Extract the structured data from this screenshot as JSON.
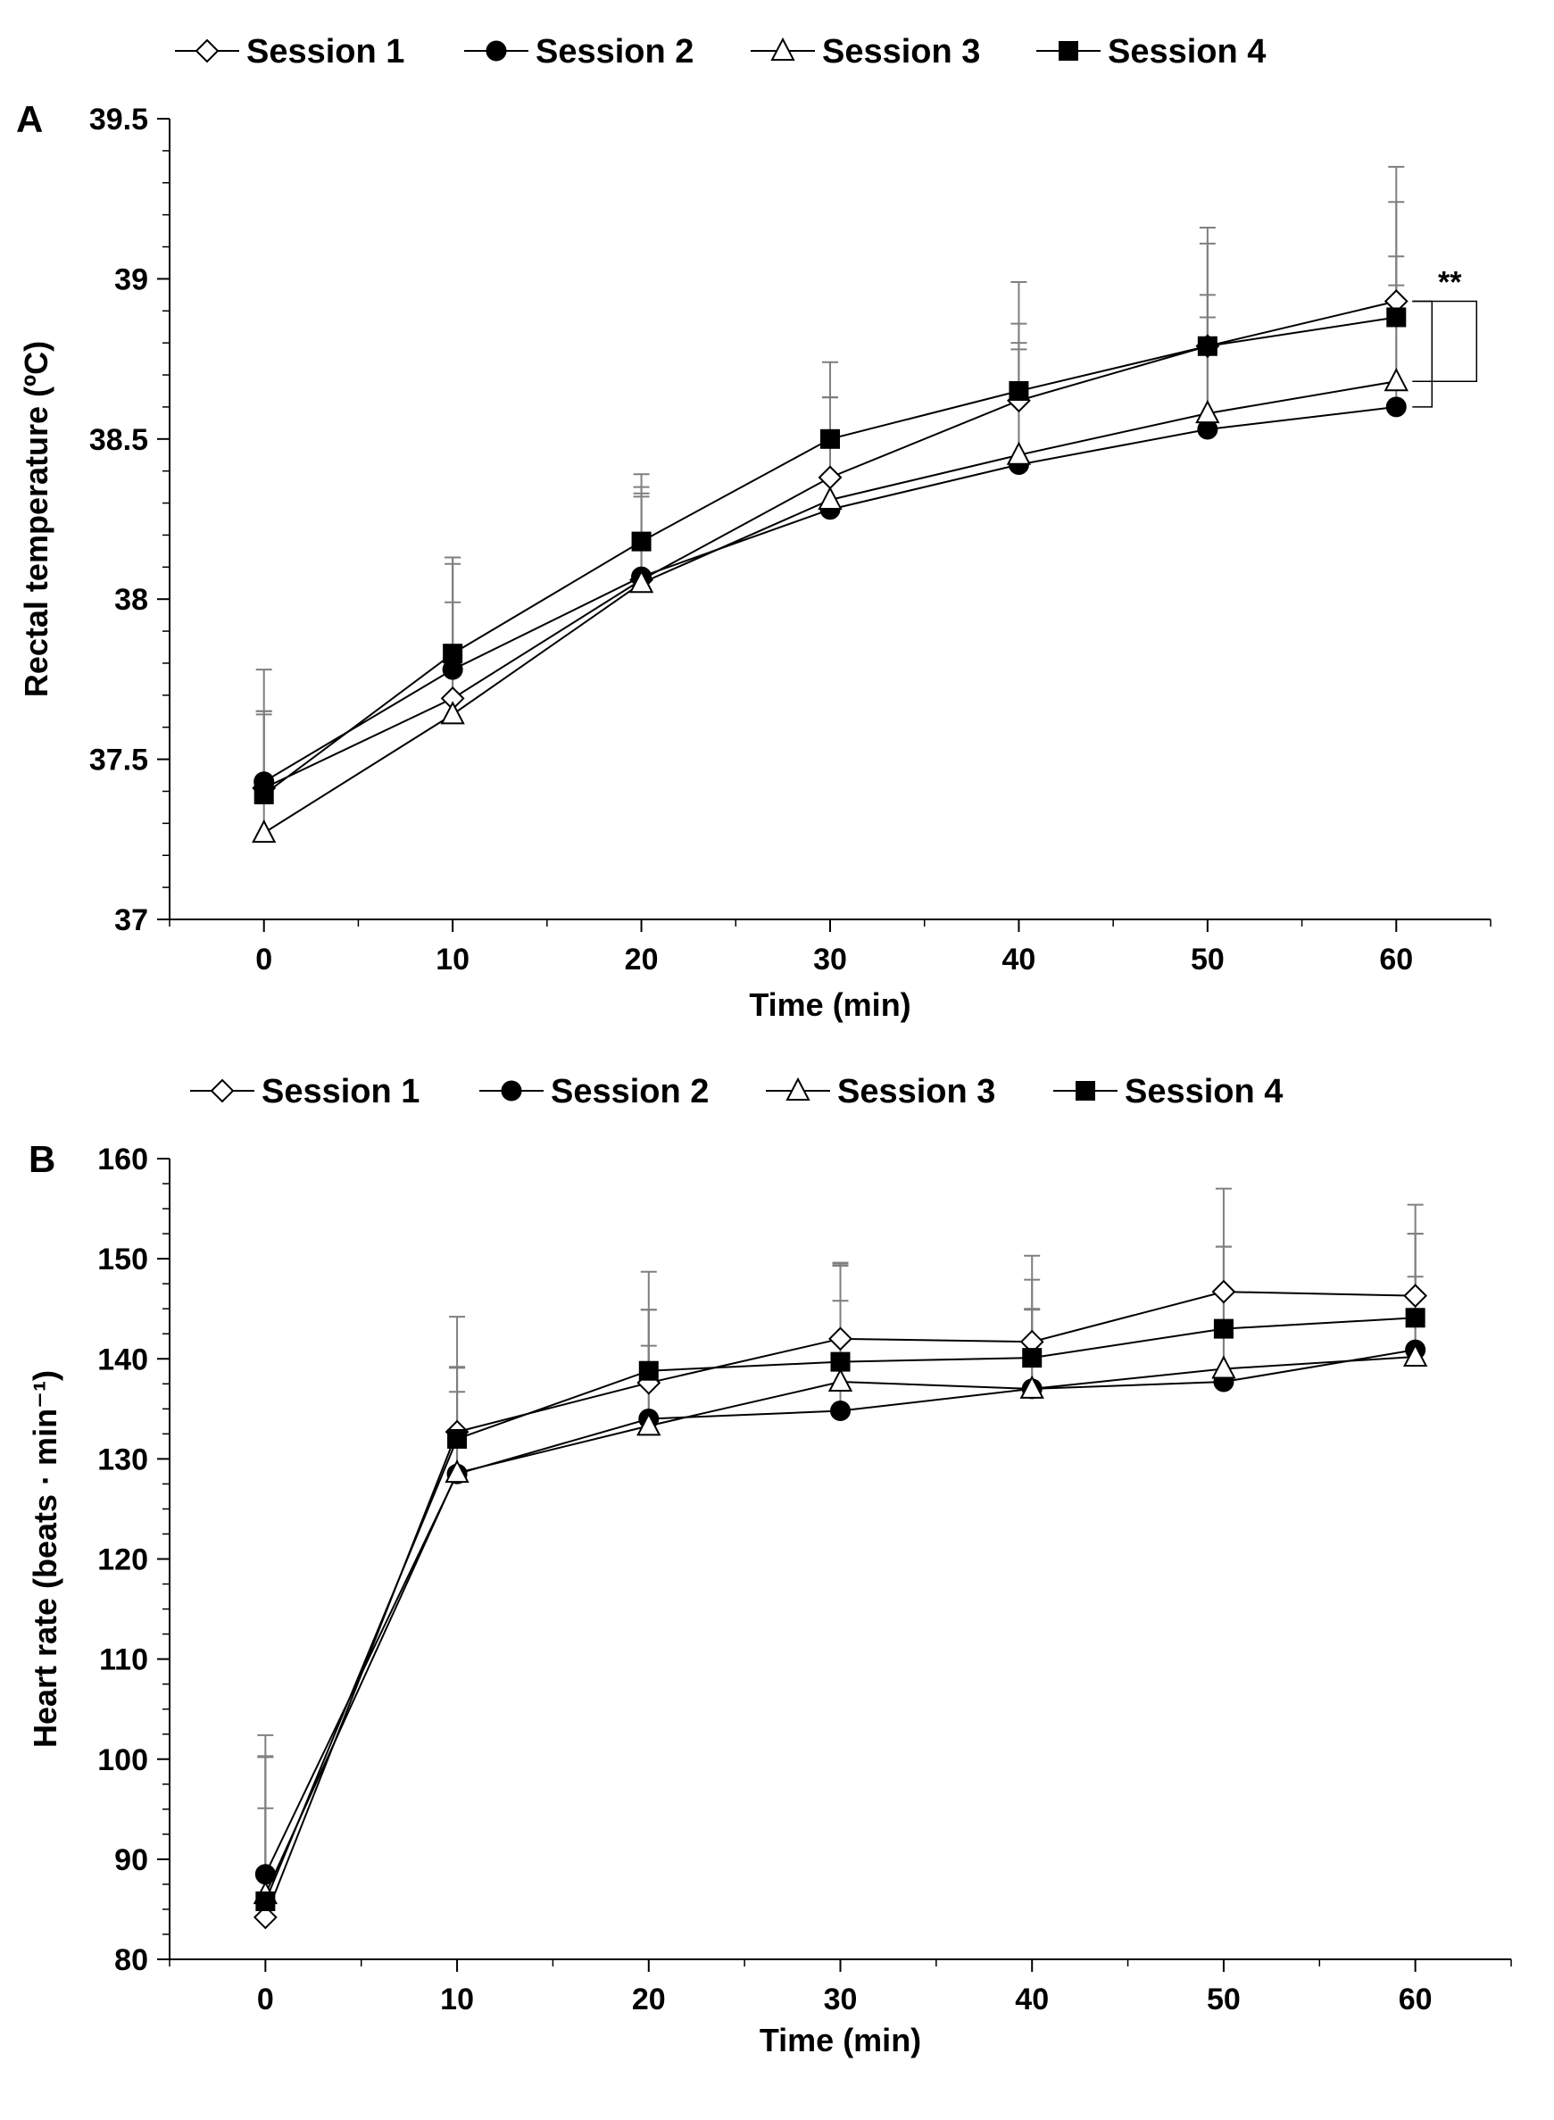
{
  "chart_data": [
    {
      "type": "line",
      "panel_label": "A",
      "title": "",
      "xlabel": "Time (min)",
      "ylabel": "Rectal temperature (ºC)",
      "x": [
        0,
        10,
        20,
        30,
        40,
        50,
        60
      ],
      "xlim": [
        -5,
        65
      ],
      "ylim": [
        37,
        39.5
      ],
      "xticks": [
        0,
        10,
        20,
        30,
        40,
        50,
        60
      ],
      "yticks": [
        37,
        37.5,
        38,
        38.5,
        39,
        39.5
      ],
      "ytick_labels": [
        "37",
        "37.5",
        "38",
        "38.5",
        "39",
        "39.5"
      ],
      "grid": false,
      "legend_position": "top",
      "error_bars": "upper SD",
      "significance": {
        "label": "**",
        "x": 60,
        "brackets": [
          [
            38.93,
            38.6
          ],
          [
            38.93,
            38.68
          ]
        ]
      },
      "series": [
        {
          "name": "Session 1",
          "marker": "diamond-open",
          "values": [
            37.41,
            37.69,
            38.06,
            38.38,
            38.62,
            38.79,
            38.93
          ],
          "errors": [
            0.24,
            0.3,
            0.27,
            0.25,
            0.24,
            0.37,
            0.42
          ]
        },
        {
          "name": "Session 2",
          "marker": "circle-filled",
          "values": [
            37.43,
            37.78,
            38.07,
            38.28,
            38.42,
            38.53,
            38.6
          ],
          "errors": [
            0.21,
            0.35,
            0.25,
            0.35,
            0.36,
            0.35,
            0.38
          ]
        },
        {
          "name": "Session 3",
          "marker": "triangle-open",
          "values": [
            37.27,
            37.64,
            38.05,
            38.31,
            38.45,
            38.58,
            38.68
          ],
          "errors": [
            0.38,
            0.47,
            0.3,
            0.32,
            0.35,
            0.37,
            0.39
          ]
        },
        {
          "name": "Session 4",
          "marker": "square-filled",
          "values": [
            37.39,
            37.83,
            38.18,
            38.5,
            38.65,
            38.79,
            38.88
          ],
          "errors": [
            0.39,
            0.3,
            0.21,
            0.24,
            0.34,
            0.32,
            0.36
          ]
        }
      ]
    },
    {
      "type": "line",
      "panel_label": "B",
      "title": "",
      "xlabel": "Time (min)",
      "ylabel": "Heart rate (beats · min⁻¹)",
      "x": [
        0,
        10,
        20,
        30,
        40,
        50,
        60
      ],
      "xlim": [
        -5,
        65
      ],
      "ylim": [
        80,
        160
      ],
      "xticks": [
        0,
        10,
        20,
        30,
        40,
        50,
        60
      ],
      "yticks": [
        80,
        90,
        100,
        110,
        120,
        130,
        140,
        150,
        160
      ],
      "ytick_labels": [
        "80",
        "90",
        "100",
        "110",
        "120",
        "130",
        "140",
        "150",
        "160"
      ],
      "grid": false,
      "legend_position": "top",
      "error_bars": "upper SD",
      "series": [
        {
          "name": "Session 1",
          "marker": "diamond-open",
          "values": [
            84.2,
            132.7,
            137.6,
            142.0,
            141.7,
            146.7,
            146.3
          ],
          "errors": [
            18.2,
            11.5,
            11.1,
            7.6,
            8.6,
            10.3,
            9.1
          ]
        },
        {
          "name": "Session 2",
          "marker": "circle-filled",
          "values": [
            88.5,
            128.5,
            134.0,
            134.8,
            137.0,
            137.7,
            140.9
          ],
          "errors": [
            11.7,
            10.7,
            10.9,
            14.5,
            10.9,
            13.5,
            11.6
          ]
        },
        {
          "name": "Session 3",
          "marker": "triangle-open",
          "values": [
            86.5,
            128.6,
            133.3,
            137.7,
            137.0,
            139.0,
            140.2
          ],
          "errors": [
            8.6,
            8.1,
            8.0,
            8.1,
            8.0,
            8.0,
            8.0
          ]
        },
        {
          "name": "Session 4",
          "marker": "square-filled",
          "values": [
            85.8,
            132.0,
            138.8,
            139.7,
            140.1,
            143.0,
            144.1
          ],
          "errors": [
            14.5,
            7.1,
            6.1,
            9.8,
            4.8,
            8.2,
            8.4
          ]
        }
      ]
    }
  ]
}
